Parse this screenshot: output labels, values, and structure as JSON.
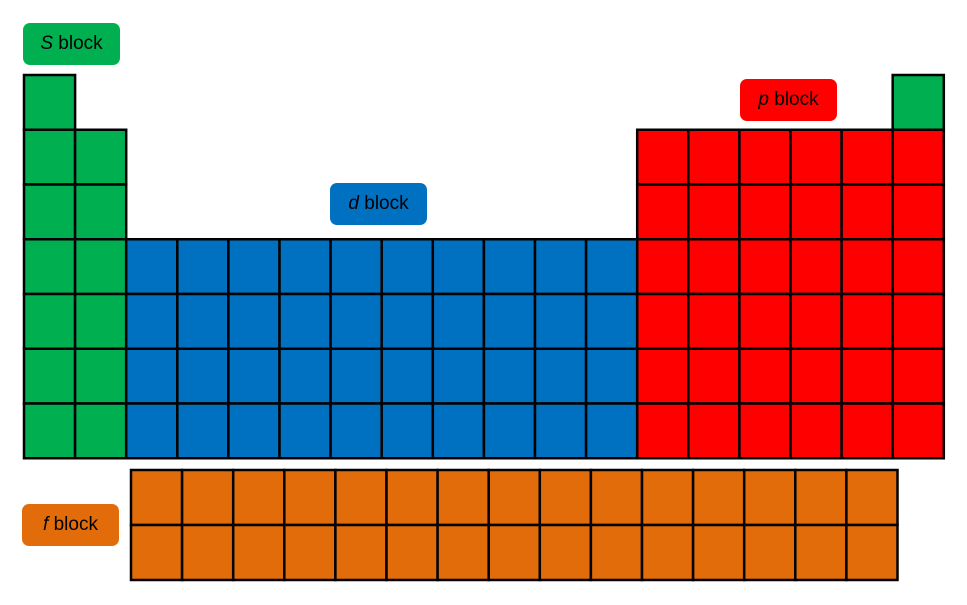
{
  "blocks": {
    "s": {
      "letter": "S",
      "word": "block",
      "color": "#00B050"
    },
    "d": {
      "letter": "d",
      "word": "block",
      "color": "#0070C0"
    },
    "p": {
      "letter": "p",
      "word": "block",
      "color": "#FF0000"
    },
    "f": {
      "letter": "f",
      "word": "block",
      "color": "#E36C0A"
    }
  }
}
